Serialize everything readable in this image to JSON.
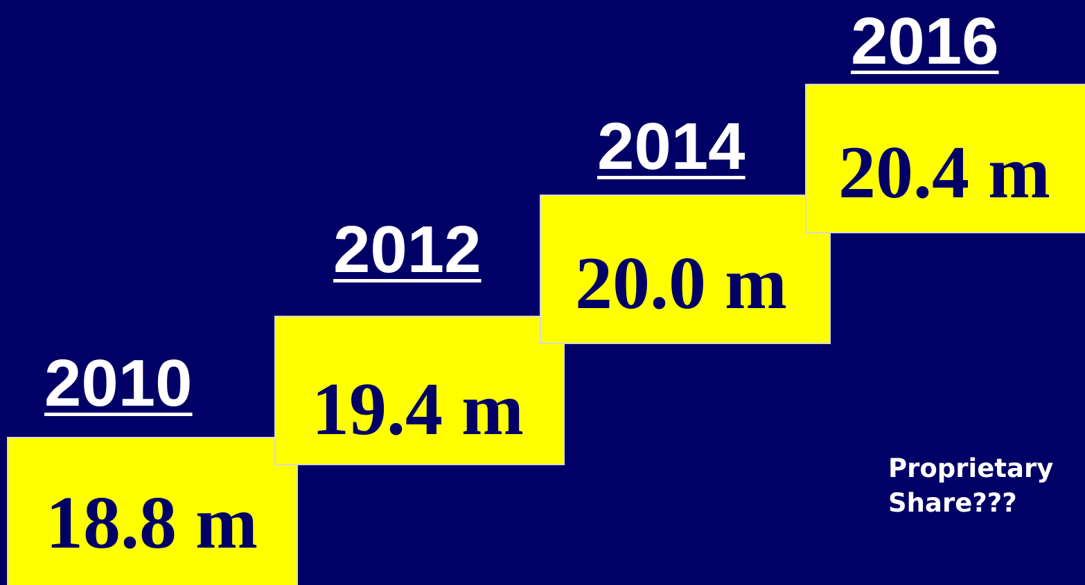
{
  "steps": [
    {
      "year": "2010",
      "value": "18.8 m"
    },
    {
      "year": "2012",
      "value": "19.4 m"
    },
    {
      "year": "2014",
      "value": "20.0 m"
    },
    {
      "year": "2016",
      "value": "20.4 m"
    }
  ],
  "note": {
    "line1": "Proprietary",
    "line2": "Share???"
  },
  "colors": {
    "background": "#000066",
    "box": "#ffff00",
    "value_text": "#000066",
    "year_text": "#ffffff"
  }
}
